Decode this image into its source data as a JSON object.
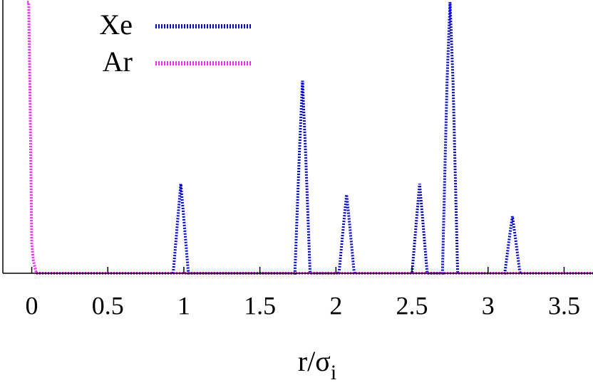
{
  "chart_data": {
    "type": "line",
    "xlabel": "r/σ",
    "xlabel_subscript": "i",
    "xlim": [
      -0.19,
      3.69
    ],
    "ylim": [
      0,
      1
    ],
    "xticks": [
      0,
      0.5,
      1,
      1.5,
      2,
      2.5,
      3,
      3.5
    ],
    "legend": "top-left",
    "series": [
      {
        "name": "Xe",
        "color": "#0000dd",
        "x": [
          0.03,
          0.93,
          0.96,
          0.98,
          1.0,
          1.03,
          1.73,
          1.76,
          1.78,
          1.8,
          1.83,
          2.02,
          2.05,
          2.07,
          2.09,
          2.12,
          2.5,
          2.53,
          2.55,
          2.57,
          2.6,
          2.7,
          2.73,
          2.75,
          2.77,
          2.8,
          3.11,
          3.14,
          3.16,
          3.18,
          3.21,
          3.69
        ],
        "values": [
          0,
          0,
          0.2,
          0.33,
          0.2,
          0,
          0,
          0.45,
          0.71,
          0.45,
          0,
          0,
          0.18,
          0.29,
          0.18,
          0,
          0,
          0.2,
          0.33,
          0.2,
          0,
          0,
          0.7,
          1.0,
          0.7,
          0,
          0,
          0.13,
          0.21,
          0.13,
          0,
          0
        ]
      },
      {
        "name": "Ar",
        "color": "#ff22ff",
        "x": [
          -0.03,
          -0.02,
          -0.01,
          0.0,
          0.01,
          0.03,
          3.69
        ],
        "values": [
          1.0,
          1.0,
          0.6,
          0.11,
          0.05,
          0,
          0
        ]
      }
    ]
  }
}
